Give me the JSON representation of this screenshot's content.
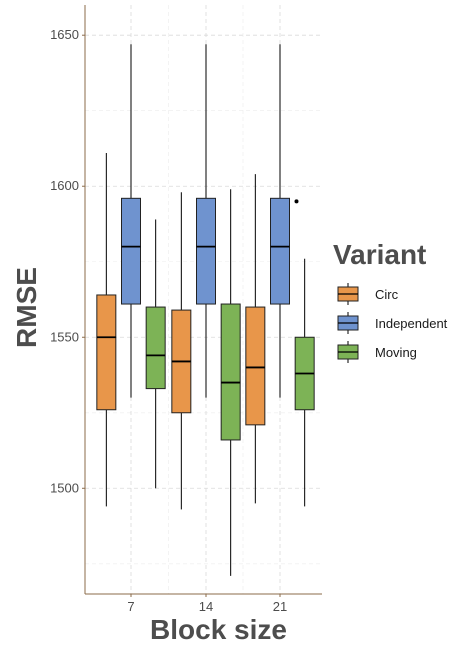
{
  "chart_data": {
    "type": "box",
    "title": "",
    "xlabel": "Block size",
    "ylabel": "RMSE",
    "categories": [
      "7",
      "14",
      "21"
    ],
    "yticks": [
      1500,
      1550,
      1600,
      1650
    ],
    "ylim": [
      1465,
      1660
    ],
    "grid": "dashed major and minor",
    "legend": {
      "title": "Variant",
      "position": "right"
    },
    "series": [
      {
        "name": "Circ",
        "color": "#E8964A",
        "boxes": [
          {
            "category": "7",
            "min": 1494,
            "q1": 1526,
            "median": 1550,
            "q3": 1564,
            "max": 1611,
            "outliers": []
          },
          {
            "category": "14",
            "min": 1493,
            "q1": 1525,
            "median": 1542,
            "q3": 1559,
            "max": 1598,
            "outliers": []
          },
          {
            "category": "21",
            "min": 1495,
            "q1": 1521,
            "median": 1540,
            "q3": 1560,
            "max": 1604,
            "outliers": []
          }
        ]
      },
      {
        "name": "Independent",
        "color": "#6F93CF",
        "boxes": [
          {
            "category": "7",
            "min": 1530,
            "q1": 1561,
            "median": 1580,
            "q3": 1596,
            "max": 1647,
            "outliers": []
          },
          {
            "category": "14",
            "min": 1530,
            "q1": 1561,
            "median": 1580,
            "q3": 1596,
            "max": 1647,
            "outliers": []
          },
          {
            "category": "21",
            "min": 1530,
            "q1": 1561,
            "median": 1580,
            "q3": 1596,
            "max": 1647,
            "outliers": [
              1595
            ]
          }
        ]
      },
      {
        "name": "Moving",
        "color": "#7DB356",
        "boxes": [
          {
            "category": "7",
            "min": 1500,
            "q1": 1533,
            "median": 1544,
            "q3": 1560,
            "max": 1589,
            "outliers": []
          },
          {
            "category": "14",
            "min": 1471,
            "q1": 1516,
            "median": 1535,
            "q3": 1561,
            "max": 1599,
            "outliers": []
          },
          {
            "category": "21",
            "min": 1494,
            "q1": 1526,
            "median": 1538,
            "q3": 1550,
            "max": 1576,
            "outliers": []
          }
        ]
      }
    ]
  }
}
